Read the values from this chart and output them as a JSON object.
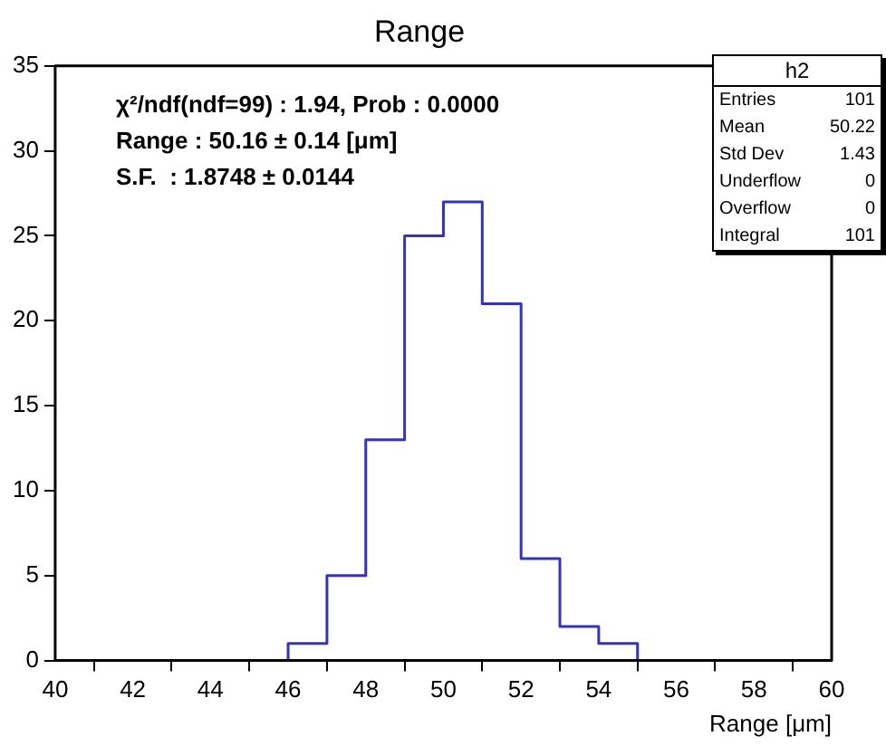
{
  "chart_data": {
    "type": "histogram",
    "title": "Range",
    "xlabel": "Range [μm]",
    "bins": [
      40,
      41,
      42,
      43,
      44,
      45,
      46,
      47,
      48,
      49,
      50,
      51,
      52,
      53,
      54,
      55,
      56,
      57,
      58,
      59,
      60
    ],
    "values": [
      0,
      0,
      0,
      0,
      0,
      0,
      1,
      5,
      13,
      25,
      27,
      21,
      6,
      2,
      1,
      0,
      0,
      0,
      0,
      0
    ],
    "color": "#3333bb",
    "xlim": [
      40,
      60
    ],
    "xticks": [
      40,
      42,
      44,
      46,
      48,
      50,
      52,
      54,
      56,
      58,
      60
    ],
    "ylim": [
      0,
      35
    ],
    "yticks": [
      0,
      5,
      10,
      15,
      20,
      25,
      30,
      35
    ],
    "grid": false,
    "legend": false,
    "annotations": [
      "χ²/ndf(ndf=99) : 1.94, Prob : 0.0000",
      "Range : 50.16 ± 0.14 [μm]",
      "S.F.  : 1.8748 ± 0.0144",
      "h2",
      "Entries",
      "101",
      "Mean",
      "50.22",
      "Std Dev",
      "1.43",
      "Underflow",
      "0",
      "Overflow",
      "0",
      "Integral",
      "101"
    ]
  }
}
